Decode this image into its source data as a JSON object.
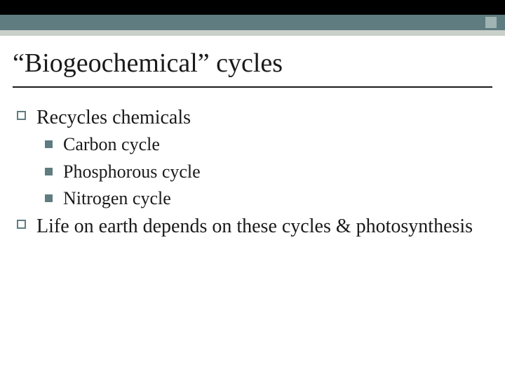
{
  "colors": {
    "bar_dark": "#000000",
    "bar_teal": "#5f7c80",
    "bar_light": "#c9cfc9",
    "accent_square": "#9fb4b3",
    "text": "#1a1a1a",
    "background": "#ffffff",
    "rule": "#1a1a1a"
  },
  "typography": {
    "title_fontsize": 38,
    "lvl1_fontsize": 28,
    "lvl2_fontsize": 26,
    "font_family": "serif"
  },
  "slide": {
    "title": "“Biogeochemical” cycles",
    "body": [
      {
        "text": "Recycles chemicals",
        "children": [
          {
            "text": "Carbon cycle"
          },
          {
            "text": "Phosphorous cycle"
          },
          {
            "text": "Nitrogen cycle"
          }
        ]
      },
      {
        "text": "Life on earth depends on these cycles & photosynthesis",
        "children": []
      }
    ]
  }
}
